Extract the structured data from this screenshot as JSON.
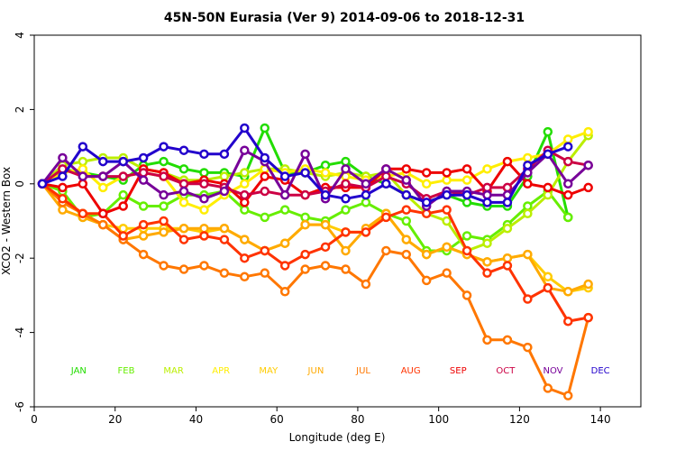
{
  "chart_data": {
    "type": "line",
    "title": "45N-50N Eurasia (Ver 9)   2014-09-06 to 2018-12-31",
    "xlabel": "Longitude (deg E)",
    "ylabel": "XCO2 - Western Box",
    "xlim": [
      0,
      150
    ],
    "ylim": [
      -6,
      4
    ],
    "xticks": [
      0,
      20,
      40,
      60,
      80,
      100,
      120,
      140
    ],
    "yticks": [
      -6,
      -4,
      -2,
      0,
      2,
      4
    ],
    "grid": false,
    "legend_position": "bottom",
    "series": [
      {
        "name": "JAN",
        "color": "#22dd00",
        "x": [
          2,
          7,
          12,
          17,
          22,
          27,
          32,
          37,
          42,
          47,
          52,
          57,
          62,
          67,
          72,
          77,
          82,
          87,
          92,
          97,
          102,
          107,
          112,
          117,
          122,
          127,
          132
        ],
        "y": [
          0,
          0.4,
          0.3,
          0.2,
          0.1,
          0.5,
          0.6,
          0.4,
          0.3,
          0.3,
          0.2,
          1.5,
          0.3,
          0.3,
          0.5,
          0.6,
          0.2,
          0.0,
          -0.3,
          -0.5,
          -0.3,
          -0.5,
          -0.6,
          -0.6,
          0.2,
          1.4,
          -0.9
        ]
      },
      {
        "name": "FEB",
        "color": "#66ee00",
        "x": [
          2,
          7,
          12,
          17,
          22,
          27,
          32,
          37,
          42,
          47,
          52,
          57,
          62,
          67,
          72,
          77,
          82,
          87,
          92,
          97,
          102,
          107,
          112,
          117,
          122,
          127,
          132
        ],
        "y": [
          0,
          -0.2,
          -0.9,
          -0.8,
          -0.3,
          -0.6,
          -0.6,
          -0.3,
          -0.3,
          -0.2,
          -0.7,
          -0.9,
          -0.7,
          -0.9,
          -1.0,
          -0.7,
          -0.5,
          -0.8,
          -1.0,
          -1.8,
          -1.8,
          -1.4,
          -1.5,
          -1.1,
          -0.6,
          -0.2,
          -0.9
        ]
      },
      {
        "name": "MAR",
        "color": "#bbee00",
        "x": [
          2,
          7,
          12,
          17,
          22,
          27,
          32,
          37,
          42,
          47,
          52,
          57,
          62,
          67,
          72,
          77,
          82,
          87,
          92,
          97,
          102,
          107,
          112,
          117,
          122,
          127,
          132,
          137
        ],
        "y": [
          0,
          0.5,
          0.6,
          0.7,
          0.7,
          0.4,
          0.3,
          0.1,
          0.1,
          0.2,
          0.3,
          0.4,
          0.4,
          0.3,
          0.2,
          0.3,
          0.2,
          0.3,
          -0.3,
          -0.8,
          -1.0,
          -1.8,
          -1.6,
          -1.2,
          -0.8,
          -0.3,
          0.6,
          1.3
        ]
      },
      {
        "name": "APR",
        "color": "#ffee00",
        "x": [
          2,
          7,
          12,
          17,
          22,
          27,
          32,
          37,
          42,
          47,
          52,
          57,
          62,
          67,
          72,
          77,
          82,
          87,
          92,
          97,
          102,
          107,
          112,
          117,
          122,
          127,
          132,
          137
        ],
        "y": [
          0,
          0.3,
          0.4,
          -0.1,
          0.2,
          0.3,
          0.2,
          -0.5,
          -0.7,
          -0.3,
          0.0,
          0.4,
          0.3,
          0.4,
          0.3,
          0.2,
          0.1,
          0.2,
          0.3,
          0.0,
          0.1,
          0.1,
          0.4,
          0.6,
          0.7,
          0.8,
          1.2,
          1.4
        ]
      },
      {
        "name": "MAY",
        "color": "#ffcc00",
        "x": [
          2,
          7,
          12,
          17,
          22,
          27,
          32,
          37,
          42,
          47,
          52,
          57,
          62,
          67,
          72,
          77,
          82,
          87,
          92,
          97,
          102,
          107,
          112,
          117,
          122,
          127,
          132,
          137
        ],
        "y": [
          0,
          -0.4,
          -0.8,
          -1.1,
          -1.2,
          -1.2,
          -1.2,
          -1.2,
          -1.3,
          -1.2,
          -1.5,
          -1.8,
          -1.6,
          -1.1,
          -1.1,
          -1.3,
          -1.3,
          -0.8,
          -1.5,
          -1.9,
          -1.7,
          -1.9,
          -2.1,
          -2.0,
          -1.9,
          -2.5,
          -2.9,
          -2.8
        ]
      },
      {
        "name": "JUN",
        "color": "#ffaa00",
        "x": [
          2,
          7,
          12,
          17,
          22,
          27,
          32,
          37,
          42,
          47,
          52,
          57,
          62,
          67,
          72,
          77,
          82,
          87,
          92,
          97,
          102,
          107,
          112,
          117,
          122,
          127,
          132,
          137
        ],
        "y": [
          0,
          -0.7,
          -0.9,
          -1.1,
          -1.5,
          -1.4,
          -1.3,
          -1.2,
          -1.2,
          -1.2,
          -1.5,
          -1.8,
          -1.6,
          -1.1,
          -1.1,
          -1.8,
          -1.2,
          -0.8,
          -1.5,
          -1.9,
          -1.7,
          -1.9,
          -2.1,
          -2.0,
          -1.9,
          -2.8,
          -2.9,
          -2.7
        ]
      },
      {
        "name": "JUL",
        "color": "#ff7700",
        "x": [
          2,
          7,
          12,
          17,
          22,
          27,
          32,
          37,
          42,
          47,
          52,
          57,
          62,
          67,
          72,
          77,
          82,
          87,
          92,
          97,
          102,
          107,
          112,
          117,
          122,
          127,
          132,
          137
        ],
        "y": [
          0,
          -0.5,
          -0.8,
          -1.1,
          -1.5,
          -1.9,
          -2.2,
          -2.3,
          -2.2,
          -2.4,
          -2.5,
          -2.4,
          -2.9,
          -2.3,
          -2.2,
          -2.3,
          -2.7,
          -1.8,
          -1.9,
          -2.6,
          -2.4,
          -3.0,
          -4.2,
          -4.2,
          -4.4,
          -5.5,
          -5.7,
          -3.6
        ]
      },
      {
        "name": "AUG",
        "color": "#ff3300",
        "x": [
          2,
          7,
          12,
          17,
          22,
          27,
          32,
          37,
          42,
          47,
          52,
          57,
          62,
          67,
          72,
          77,
          82,
          87,
          92,
          97,
          102,
          107,
          112,
          117,
          122,
          127,
          132,
          137
        ],
        "y": [
          0,
          -0.4,
          -0.8,
          -0.8,
          -1.4,
          -1.1,
          -1.0,
          -1.5,
          -1.4,
          -1.5,
          -2.0,
          -1.8,
          -2.2,
          -1.9,
          -1.7,
          -1.3,
          -1.3,
          -0.9,
          -0.7,
          -0.8,
          -0.7,
          -1.8,
          -2.4,
          -2.2,
          -3.1,
          -2.8,
          -3.7,
          -3.6
        ]
      },
      {
        "name": "SEP",
        "color": "#ee0000",
        "x": [
          2,
          7,
          12,
          17,
          22,
          27,
          32,
          37,
          42,
          47,
          52,
          57,
          62,
          67,
          72,
          77,
          82,
          87,
          92,
          97,
          102,
          107,
          112,
          117,
          122,
          127,
          132,
          137
        ],
        "y": [
          0,
          -0.1,
          0.0,
          -0.8,
          -0.6,
          0.4,
          0.3,
          0.0,
          0.1,
          0.0,
          -0.5,
          0.2,
          0.1,
          -0.3,
          -0.1,
          -0.1,
          -0.1,
          0.4,
          0.4,
          0.3,
          0.3,
          0.4,
          -0.2,
          0.6,
          0.0,
          -0.1,
          -0.3,
          -0.1
        ]
      },
      {
        "name": "OCT",
        "color": "#cc0044",
        "x": [
          2,
          7,
          12,
          17,
          22,
          27,
          32,
          37,
          42,
          47,
          52,
          57,
          62,
          67,
          72,
          77,
          82,
          87,
          92,
          97,
          102,
          107,
          112,
          117,
          122,
          127,
          132,
          137
        ],
        "y": [
          0,
          0.4,
          0.2,
          0.2,
          0.2,
          0.3,
          0.2,
          0.0,
          0.0,
          -0.1,
          -0.3,
          -0.2,
          -0.3,
          -0.3,
          -0.2,
          0.0,
          -0.1,
          0.2,
          0.0,
          -0.4,
          -0.2,
          -0.3,
          -0.1,
          -0.1,
          0.4,
          0.9,
          0.6,
          0.5
        ]
      },
      {
        "name": "NOV",
        "color": "#770099",
        "x": [
          2,
          7,
          12,
          17,
          22,
          27,
          32,
          37,
          42,
          47,
          52,
          57,
          62,
          67,
          72,
          77,
          82,
          87,
          92,
          97,
          102,
          107,
          112,
          117,
          122,
          127,
          132,
          137
        ],
        "y": [
          0,
          0.7,
          0.2,
          0.2,
          0.6,
          0.1,
          -0.3,
          -0.2,
          -0.4,
          -0.2,
          0.9,
          0.6,
          -0.3,
          0.8,
          -0.4,
          0.4,
          0.0,
          0.4,
          0.1,
          -0.6,
          -0.2,
          -0.2,
          -0.3,
          -0.3,
          0.3,
          0.8,
          0.0,
          0.5
        ]
      },
      {
        "name": "DEC",
        "color": "#2200cc",
        "x": [
          2,
          7,
          12,
          17,
          22,
          27,
          32,
          37,
          42,
          47,
          52,
          57,
          62,
          67,
          72,
          77,
          82,
          87,
          92,
          97,
          102,
          107,
          112,
          117,
          122,
          127,
          132
        ],
        "y": [
          0,
          0.2,
          1.0,
          0.6,
          0.6,
          0.7,
          1.0,
          0.9,
          0.8,
          0.8,
          1.5,
          0.7,
          0.2,
          0.3,
          -0.3,
          -0.4,
          -0.3,
          0.0,
          -0.3,
          -0.5,
          -0.3,
          -0.3,
          -0.5,
          -0.5,
          0.5,
          0.8,
          1.0
        ]
      }
    ]
  }
}
